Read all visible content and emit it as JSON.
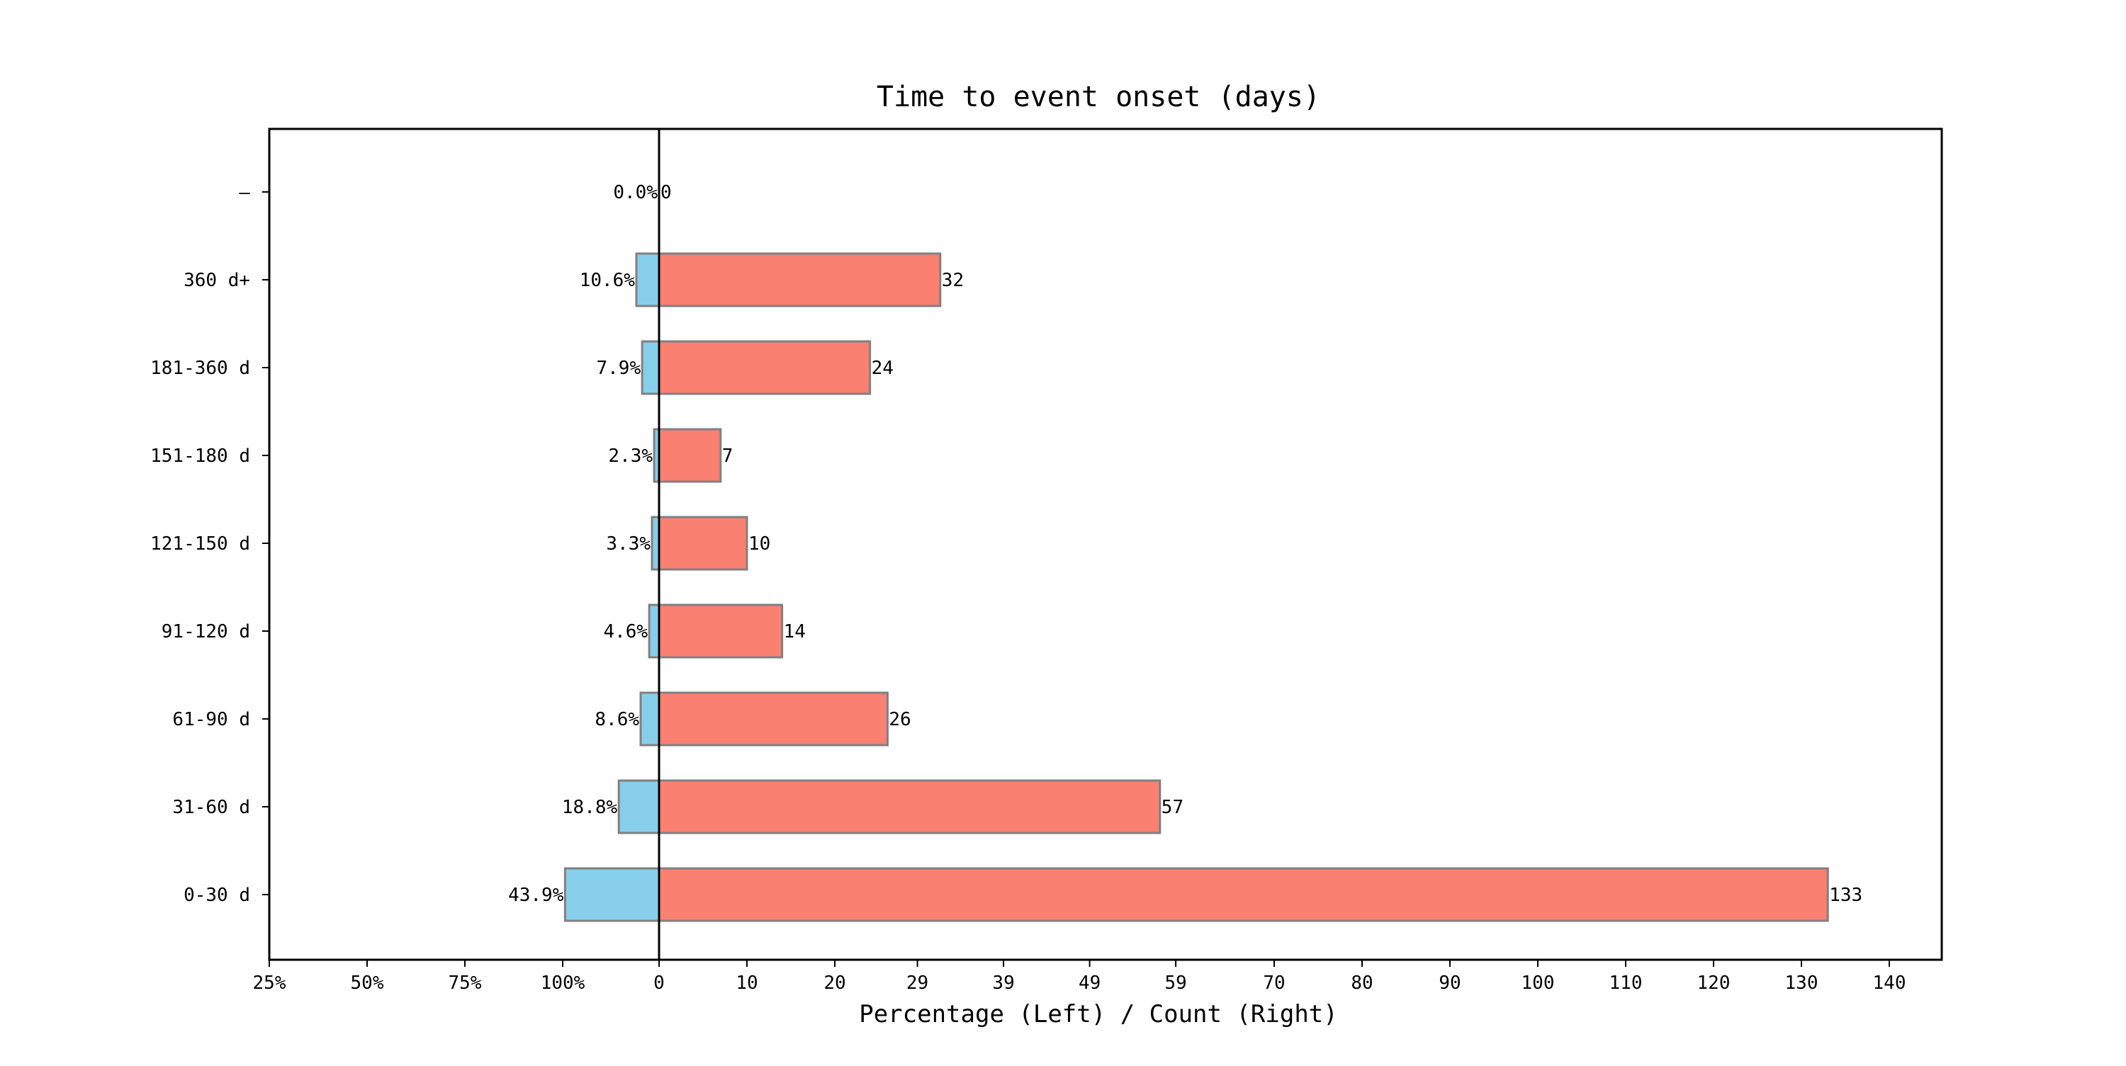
{
  "chart_data": {
    "type": "bar",
    "orientation": "horizontal",
    "layout": "butterfly",
    "title": "Time to event onset (days)",
    "xlabel": "Percentage (Left) / Count (Right)",
    "categories": [
      "0-30 d",
      "31-60 d",
      "61-90 d",
      "91-120 d",
      "121-150 d",
      "151-180 d",
      "181-360 d",
      "360 d+",
      "—"
    ],
    "series": [
      {
        "side": "left",
        "values": [
          43.9,
          18.8,
          8.6,
          4.6,
          3.3,
          2.3,
          7.9,
          10.6,
          0.0
        ],
        "labels": [
          "43.9%",
          "18.8%",
          "8.6%",
          "4.6%",
          "3.3%",
          "2.3%",
          "7.9%",
          "10.6%",
          "0.0%"
        ],
        "color": "#87CEEB"
      },
      {
        "side": "right",
        "values": [
          133,
          57,
          26,
          14,
          10,
          7,
          24,
          32,
          0
        ],
        "labels": [
          "133",
          "57",
          "26",
          "14",
          "10",
          "7",
          "24",
          "32",
          "0"
        ],
        "color": "#FA8072"
      }
    ],
    "left_ticks": [
      "25%",
      "50%",
      "75%",
      "100%"
    ],
    "right_ticks": [
      "0",
      "10",
      "20",
      "29",
      "39",
      "49",
      "59",
      "70",
      "80",
      "90",
      "100",
      "110",
      "120",
      "130",
      "140"
    ],
    "right_tick_values": [
      0,
      10,
      20,
      29.4,
      39.2,
      49,
      58.8,
      70,
      80,
      90,
      100,
      110,
      120,
      130,
      140
    ],
    "xlim": [
      -44.4,
      146.2
    ],
    "bar_edge_color": "#808080",
    "grid": false,
    "legend": "none"
  }
}
